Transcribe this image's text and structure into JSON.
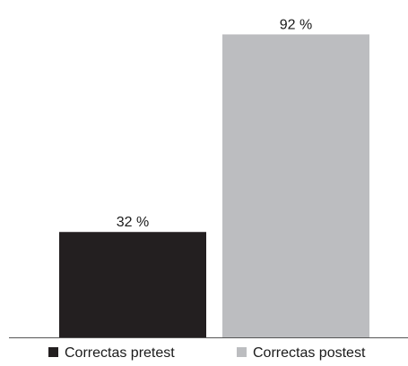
{
  "chart_data": {
    "type": "bar",
    "categories": [
      "Correctas pretest",
      "Correctas postest"
    ],
    "values": [
      32,
      92
    ],
    "value_labels": [
      "32 %",
      "92 %"
    ],
    "colors": [
      "#231f20",
      "#bcbdc0"
    ],
    "ylim": [
      0,
      100
    ],
    "grid": false,
    "legend_position": "bottom",
    "title": "",
    "xlabel": "",
    "ylabel": ""
  }
}
